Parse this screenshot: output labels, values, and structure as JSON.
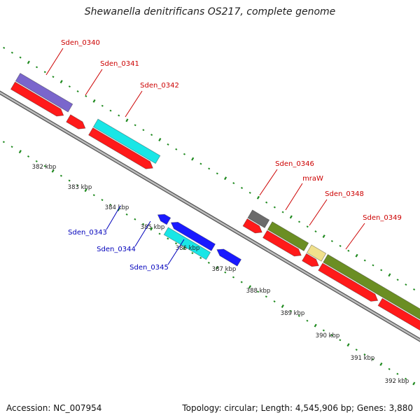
{
  "title": "Shewanella denitrificans OS217, complete genome",
  "footer": {
    "accession": "Accession: NC_007954",
    "summary": "Topology: circular; Length: 4,545,906 bp; Genes: 3,880"
  },
  "colors": {
    "background": "#ffffff",
    "backbone": "#8a8a8a",
    "tick_dots": "#1f8a1f",
    "forward_label": "#cc0000",
    "reverse_label": "#0000bb",
    "cds": "#ff1a1a",
    "cds_reverse": "#1a1aff",
    "cyan_feature": "#19e6e6",
    "purple_feature": "#7a66cc",
    "olive_feature": "#6b8e23",
    "grey_feature": "#6b6b6b",
    "tan_feature": "#f0e08c"
  },
  "axis": {
    "unit": "kbp",
    "ticks": [
      "382 kbp",
      "383 kbp",
      "384 kbp",
      "385 kbp",
      "386 kbp",
      "387 kbp",
      "388 kbp",
      "389 kbp",
      "390 kbp",
      "391 kbp",
      "392 kbp"
    ]
  },
  "gene_labels": [
    {
      "text": "Sden_0340",
      "strand": "forward"
    },
    {
      "text": "Sden_0341",
      "strand": "forward"
    },
    {
      "text": "Sden_0342",
      "strand": "forward"
    },
    {
      "text": "Sden_0346",
      "strand": "forward"
    },
    {
      "text": "mraW",
      "strand": "forward"
    },
    {
      "text": "Sden_0348",
      "strand": "forward"
    },
    {
      "text": "Sden_0349",
      "strand": "forward"
    },
    {
      "text": "Sden_0343",
      "strand": "reverse"
    },
    {
      "text": "Sden_0344",
      "strand": "reverse"
    },
    {
      "text": "Sden_0345",
      "strand": "reverse"
    }
  ]
}
